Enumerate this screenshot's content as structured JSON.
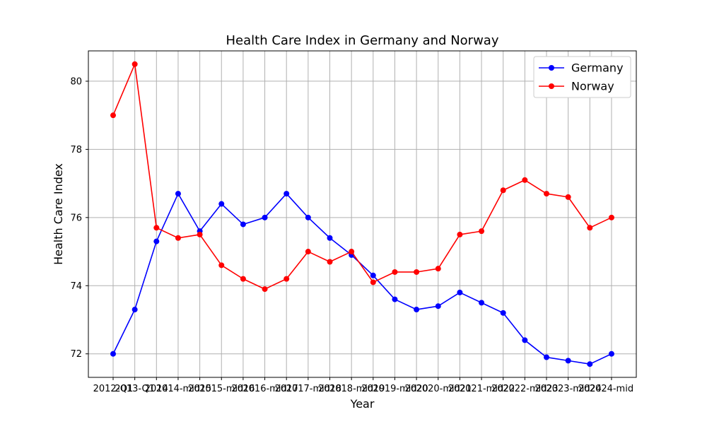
{
  "chart_data": {
    "type": "line",
    "title": "Health Care Index in Germany and Norway",
    "xlabel": "Year",
    "ylabel": "Health Care Index",
    "categories": [
      "2012-Q1",
      "2013-Q1",
      "2014",
      "2014-mid",
      "2015",
      "2015-mid",
      "2016",
      "2016-mid",
      "2017",
      "2017-mid",
      "2018",
      "2018-mid",
      "2019",
      "2019-mid",
      "2020",
      "2020-mid",
      "2021",
      "2021-mid",
      "2022",
      "2022-mid",
      "2023",
      "2023-mid",
      "2024",
      "2024-mid"
    ],
    "series": [
      {
        "name": "Germany",
        "color": "#0000ff",
        "values": [
          72.0,
          73.3,
          75.3,
          76.7,
          75.6,
          76.4,
          75.8,
          76.0,
          76.7,
          76.0,
          75.4,
          74.9,
          74.3,
          73.6,
          73.3,
          73.4,
          73.8,
          73.5,
          73.2,
          72.4,
          71.9,
          71.8,
          71.7,
          72.0
        ]
      },
      {
        "name": "Norway",
        "color": "#ff0000",
        "values": [
          79.0,
          80.5,
          75.7,
          75.4,
          75.5,
          74.6,
          74.2,
          73.9,
          74.2,
          75.0,
          74.7,
          75.0,
          74.1,
          74.4,
          74.4,
          74.5,
          75.5,
          75.6,
          76.8,
          77.1,
          76.7,
          76.6,
          75.7,
          76.0
        ]
      }
    ],
    "yticks": [
      72,
      74,
      76,
      78,
      80
    ],
    "ylim": [
      71.31,
      80.89
    ],
    "grid": true,
    "legend": "top-right"
  }
}
